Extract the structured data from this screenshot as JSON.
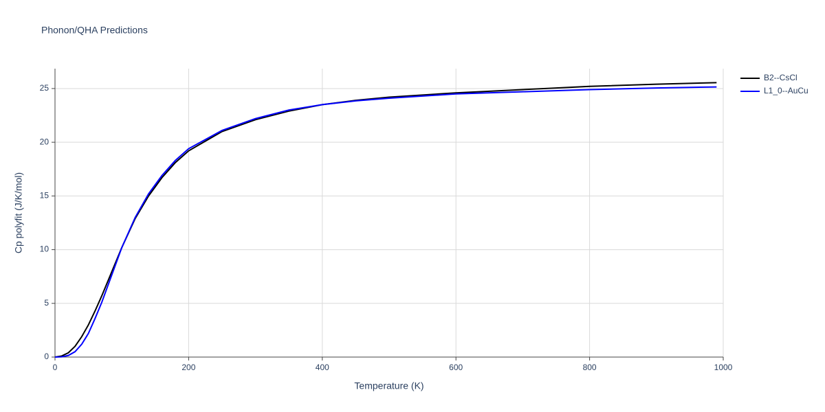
{
  "chart_data": {
    "type": "line",
    "title": "Phonon/QHA Predictions",
    "xlabel": "Temperature (K)",
    "ylabel": "Cp polyfit (J/K/mol)",
    "x": [
      0,
      10,
      20,
      30,
      40,
      50,
      60,
      70,
      80,
      90,
      100,
      120,
      140,
      160,
      180,
      200,
      250,
      300,
      350,
      400,
      450,
      500,
      600,
      700,
      800,
      900,
      990
    ],
    "series": [
      {
        "name": "B2--CsCl",
        "color": "#000000",
        "values": [
          0,
          0.1,
          0.4,
          1.0,
          1.9,
          3.0,
          4.3,
          5.7,
          7.2,
          8.7,
          10.2,
          12.9,
          15.0,
          16.7,
          18.1,
          19.2,
          21.0,
          22.1,
          22.9,
          23.5,
          23.9,
          24.2,
          24.6,
          24.9,
          25.2,
          25.4,
          25.55
        ]
      },
      {
        "name": "L1_0--AuCu",
        "color": "#0000ff",
        "values": [
          0,
          0.02,
          0.15,
          0.5,
          1.2,
          2.2,
          3.6,
          5.1,
          6.8,
          8.5,
          10.2,
          13.0,
          15.2,
          16.9,
          18.3,
          19.4,
          21.1,
          22.2,
          23.0,
          23.5,
          23.85,
          24.1,
          24.5,
          24.7,
          24.9,
          25.05,
          25.15
        ]
      }
    ],
    "xlim": [
      0,
      1000
    ],
    "ylim": [
      0,
      26.85
    ],
    "xticks": [
      0,
      200,
      400,
      600,
      800,
      1000
    ],
    "yticks": [
      0,
      5,
      10,
      15,
      20,
      25
    ],
    "grid": true
  }
}
